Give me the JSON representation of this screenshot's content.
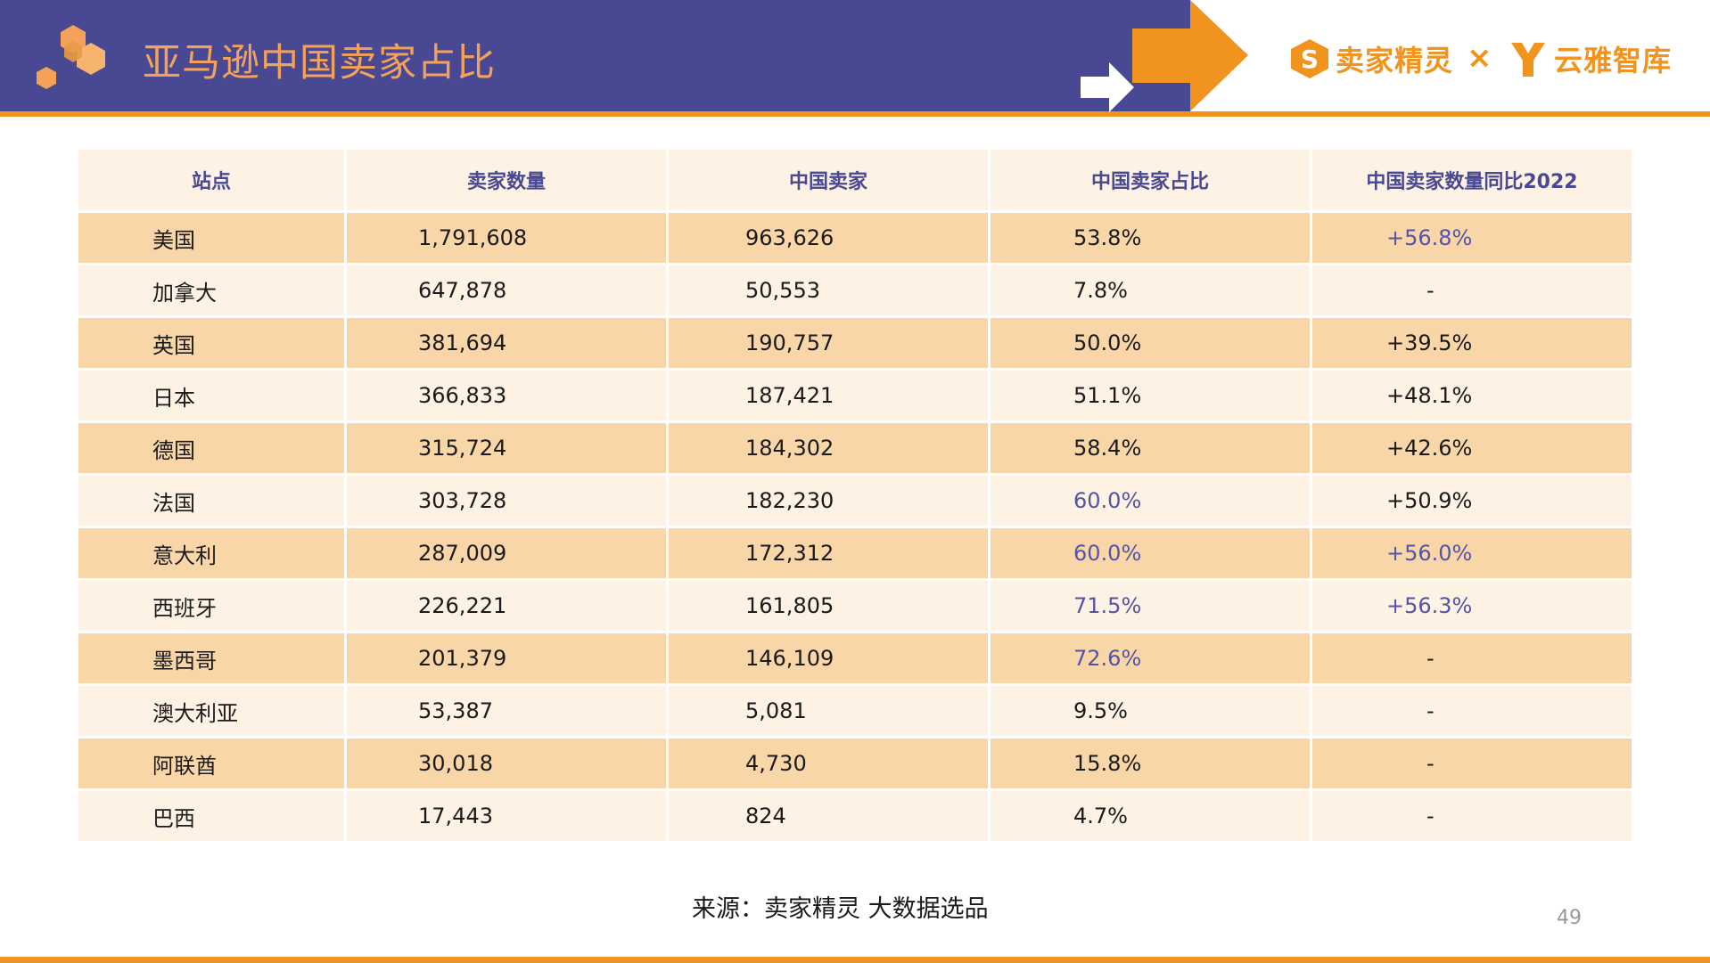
{
  "header": {
    "title": "亚马逊中国卖家占比",
    "brand_left": "卖家精灵",
    "brand_separator": "×",
    "brand_right": "云雅智库",
    "colors": {
      "header_bg": "#494993",
      "accent": "#F0931F",
      "title": "#F4A259",
      "highlight": "#5454A6"
    }
  },
  "table": {
    "headers": [
      "站点",
      "卖家数量",
      "中国卖家",
      "中国卖家占比",
      "中国卖家数量同比2022"
    ],
    "rows": [
      {
        "site": "美国",
        "sellers": "1,791,608",
        "cn_sellers": "963,626",
        "share": "53.8%",
        "yoy": "+56.8%",
        "share_hl": false,
        "yoy_hl": true
      },
      {
        "site": "加拿大",
        "sellers": "647,878",
        "cn_sellers": "50,553",
        "share": "7.8%",
        "yoy": "-",
        "share_hl": false,
        "yoy_hl": false
      },
      {
        "site": "英国",
        "sellers": "381,694",
        "cn_sellers": "190,757",
        "share": "50.0%",
        "yoy": "+39.5%",
        "share_hl": false,
        "yoy_hl": false
      },
      {
        "site": "日本",
        "sellers": "366,833",
        "cn_sellers": "187,421",
        "share": "51.1%",
        "yoy": "+48.1%",
        "share_hl": false,
        "yoy_hl": false
      },
      {
        "site": "德国",
        "sellers": "315,724",
        "cn_sellers": "184,302",
        "share": "58.4%",
        "yoy": "+42.6%",
        "share_hl": false,
        "yoy_hl": false
      },
      {
        "site": "法国",
        "sellers": "303,728",
        "cn_sellers": "182,230",
        "share": "60.0%",
        "yoy": "+50.9%",
        "share_hl": true,
        "yoy_hl": false
      },
      {
        "site": "意大利",
        "sellers": "287,009",
        "cn_sellers": "172,312",
        "share": "60.0%",
        "yoy": "+56.0%",
        "share_hl": true,
        "yoy_hl": true
      },
      {
        "site": "西班牙",
        "sellers": "226,221",
        "cn_sellers": "161,805",
        "share": "71.5%",
        "yoy": "+56.3%",
        "share_hl": true,
        "yoy_hl": true
      },
      {
        "site": "墨西哥",
        "sellers": "201,379",
        "cn_sellers": "146,109",
        "share": "72.6%",
        "yoy": "-",
        "share_hl": true,
        "yoy_hl": false
      },
      {
        "site": "澳大利亚",
        "sellers": "53,387",
        "cn_sellers": "5,081",
        "share": "9.5%",
        "yoy": "-",
        "share_hl": false,
        "yoy_hl": false
      },
      {
        "site": "阿联酋",
        "sellers": "30,018",
        "cn_sellers": "4,730",
        "share": "15.8%",
        "yoy": "-",
        "share_hl": false,
        "yoy_hl": false
      },
      {
        "site": "巴西",
        "sellers": "17,443",
        "cn_sellers": "824",
        "share": "4.7%",
        "yoy": "-",
        "share_hl": false,
        "yoy_hl": false
      }
    ]
  },
  "footer": {
    "source": "来源：卖家精灵 大数据选品",
    "page_number": "49"
  }
}
